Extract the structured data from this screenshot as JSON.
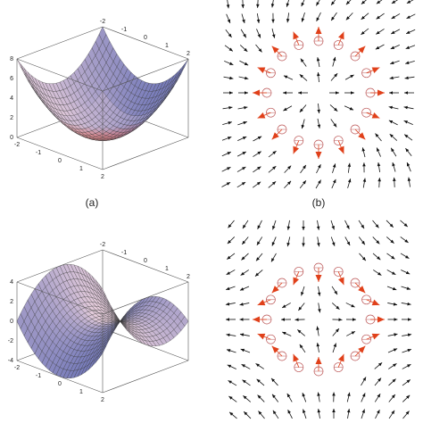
{
  "panels": [
    {
      "caption": "(a)",
      "top_ticks": [
        "-2",
        "-1",
        "0",
        "1",
        "2"
      ],
      "z_ticks": [
        "8",
        "6",
        "4",
        "2",
        "0"
      ],
      "front_ticks": [
        "-2",
        "-1",
        "0",
        "1",
        "2"
      ]
    },
    {
      "caption": "(b)"
    },
    {
      "top_ticks": [
        "-2",
        "-1",
        "0",
        "1",
        "2"
      ],
      "z_ticks": [
        "4",
        "2",
        "0",
        "-2",
        "-4"
      ],
      "front_ticks": [
        "-2",
        "-1",
        "0",
        "1",
        "2"
      ]
    },
    {}
  ]
}
